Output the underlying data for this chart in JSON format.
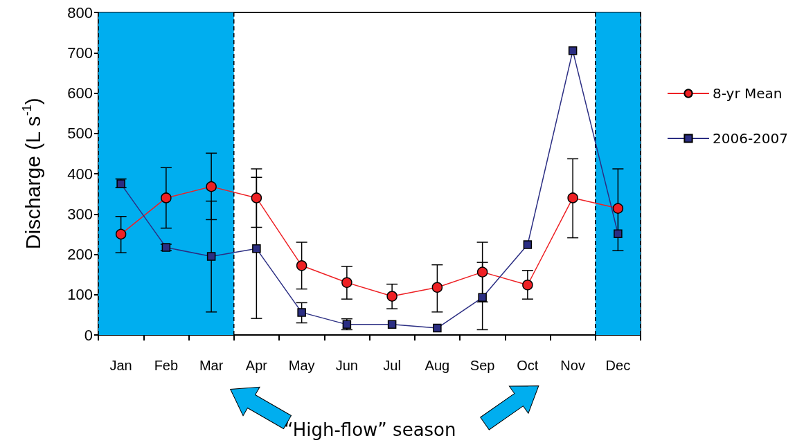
{
  "chart_data": {
    "type": "line",
    "ylabel": "Discharge (L s$^{-1}$)",
    "categories": [
      "Jan",
      "Feb",
      "Mar",
      "Apr",
      "May",
      "Jun",
      "Jul",
      "Aug",
      "Sep",
      "Oct",
      "Nov",
      "Dec"
    ],
    "series": [
      {
        "name": "8-yr Mean",
        "color": "#ee2024",
        "marker": "circle",
        "values": [
          250,
          340,
          368,
          340,
          172,
          130,
          96,
          118,
          156,
          124,
          340,
          314
        ],
        "errors": [
          [
            204,
            294
          ],
          [
            265,
            415
          ],
          [
            286,
            451
          ],
          [
            267,
            412
          ],
          [
            114,
            230
          ],
          [
            89,
            170
          ],
          [
            65,
            126
          ],
          [
            57,
            174
          ],
          [
            82,
            230
          ],
          [
            89,
            160
          ],
          [
            241,
            437
          ],
          [
            209,
            412
          ]
        ]
      },
      {
        "name": "2006-2007",
        "color": "#2b2e83",
        "marker": "square",
        "values": [
          375,
          217,
          195,
          214,
          56,
          26,
          26,
          17,
          93,
          224,
          705,
          251
        ],
        "errors": [
          [
            366,
            387
          ],
          [
            209,
            225
          ],
          [
            57,
            332
          ],
          [
            41,
            391
          ],
          [
            30,
            80
          ],
          [
            13,
            40
          ],
          null,
          null,
          [
            13,
            180
          ],
          null,
          null,
          null
        ]
      }
    ],
    "ylim": [
      0,
      800
    ],
    "yticks": [
      0,
      100,
      200,
      300,
      400,
      500,
      600,
      700,
      800
    ],
    "grid": false,
    "legend": "right",
    "bands": [
      {
        "axis": "x",
        "from": "Jan",
        "to": "Mar",
        "color": "#00aeef"
      },
      {
        "axis": "x",
        "from": "Dec",
        "to": "Dec",
        "color": "#00aeef"
      }
    ],
    "annotations": [
      "“High-flow” season"
    ]
  }
}
